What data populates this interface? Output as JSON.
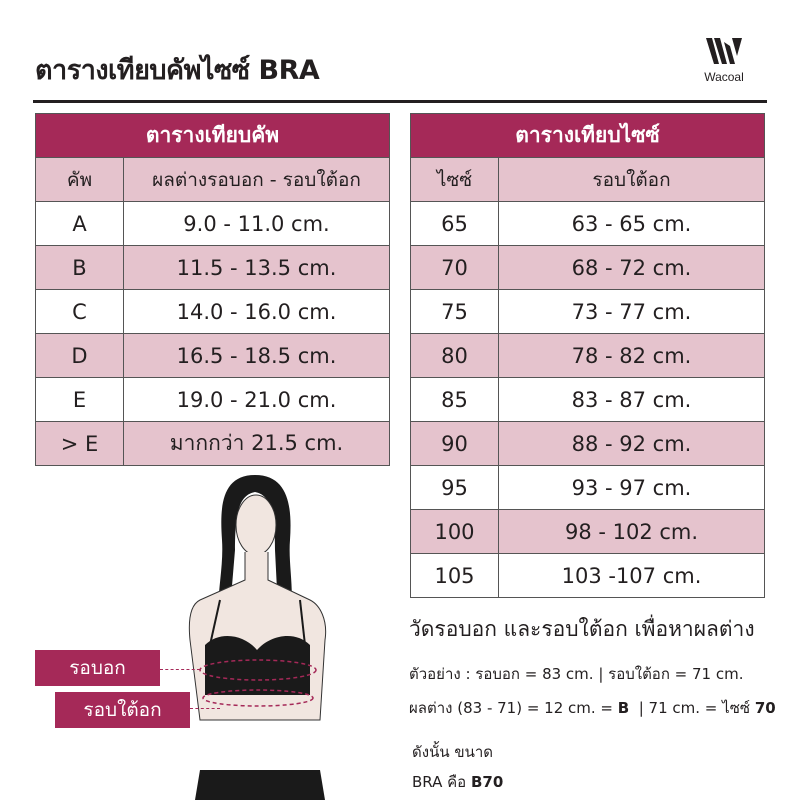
{
  "title": "ตารางเทียบคัพไซซ์ BRA",
  "logo": {
    "text": "Wacoal",
    "icon": "wacoal-w-logo"
  },
  "colors": {
    "header": "#a52958",
    "pink_row": "#e5c3cd"
  },
  "cup_table": {
    "title": "ตารางเทียบคัพ",
    "headers": [
      "คัพ",
      "ผลต่างรอบอก - รอบใต้อก"
    ],
    "rows": [
      [
        "A",
        "9.0 - 11.0 cm."
      ],
      [
        "B",
        "11.5 - 13.5 cm."
      ],
      [
        "C",
        "14.0 - 16.0 cm."
      ],
      [
        "D",
        "16.5 - 18.5 cm."
      ],
      [
        "E",
        "19.0 - 21.0 cm."
      ],
      [
        "> E",
        "มากกว่า 21.5 cm."
      ]
    ]
  },
  "size_table": {
    "title": "ตารางเทียบไซซ์",
    "headers": [
      "ไซซ์",
      "รอบใต้อก"
    ],
    "rows": [
      [
        "65",
        "63 - 65 cm."
      ],
      [
        "70",
        "68 - 72 cm."
      ],
      [
        "75",
        "73 - 77 cm."
      ],
      [
        "80",
        "78 - 82 cm."
      ],
      [
        "85",
        "83 - 87 cm."
      ],
      [
        "90",
        "88 - 92 cm."
      ],
      [
        "95",
        "93 - 97 cm."
      ],
      [
        "100",
        "98 - 102 cm."
      ],
      [
        "105",
        "103 -107 cm."
      ]
    ]
  },
  "labels": {
    "bust": "รอบอก",
    "underbust": "รอบใต้อก"
  },
  "instructions": {
    "heading": "วัดรอบอก และรอบใต้อก เพื่อหาผลต่าง",
    "example": "ตัวอย่าง :  รอบอก = 83 cm. | รอบใต้อก = 71 cm.",
    "diff_prefix": "ผลต่าง (83 - 71) = 12 cm. = ",
    "diff_cup": "B",
    "diff_mid": "  | 71 cm. = ไซซ์ ",
    "diff_size": "70",
    "conclusion_1": "ดังนั้น ขนาด",
    "conclusion_2_prefix": "BRA คือ ",
    "conclusion_2_value": "B70"
  }
}
